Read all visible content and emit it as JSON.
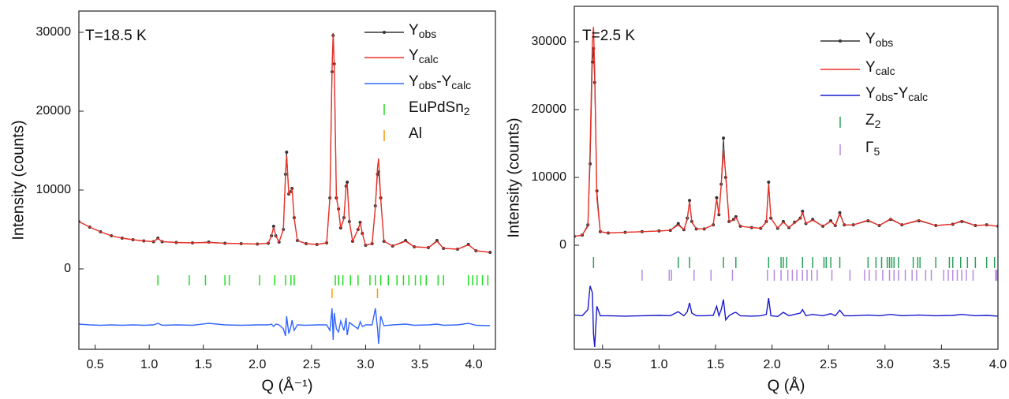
{
  "chart_data": [
    {
      "type": "line",
      "annotation": "T=18.5 K",
      "xlabel": "Q (Å⁻¹)",
      "ylabel": "Intensity (counts)",
      "xlim": [
        0.35,
        4.2
      ],
      "xticks": [
        0.5,
        {
          "value": 1,
          "label": "1.0"
        },
        1.5,
        {
          "value": 2,
          "label": "2.0"
        },
        2.5,
        {
          "value": 3,
          "label": "3.0"
        },
        3.5,
        {
          "value": 4,
          "label": "4.0"
        }
      ],
      "ylim": [
        -10200,
        32700
      ],
      "yticks": [
        0,
        10000,
        20000,
        30000
      ],
      "x": [
        0.35,
        0.45,
        0.55,
        0.65,
        0.75,
        0.85,
        0.95,
        1.04,
        1.08,
        1.12,
        1.25,
        1.4,
        1.55,
        1.7,
        1.85,
        2.0,
        2.1,
        2.13,
        2.15,
        2.17,
        2.2,
        2.24,
        2.26,
        2.27,
        2.29,
        2.31,
        2.32,
        2.34,
        2.37,
        2.45,
        2.55,
        2.64,
        2.67,
        2.69,
        2.7,
        2.71,
        2.73,
        2.75,
        2.77,
        2.8,
        2.82,
        2.83,
        2.85,
        2.88,
        2.93,
        2.95,
        2.97,
        3.0,
        3.06,
        3.09,
        3.11,
        3.12,
        3.14,
        3.17,
        3.25,
        3.37,
        3.45,
        3.58,
        3.66,
        3.72,
        3.85,
        3.95,
        4.02,
        4.15
      ],
      "series": [
        {
          "name": "Yobs",
          "color": "#333333",
          "marker": true,
          "values": [
            6000,
            5300,
            4700,
            4200,
            3900,
            3700,
            3550,
            3450,
            3900,
            3450,
            3350,
            3300,
            3400,
            3250,
            3200,
            3150,
            3250,
            4200,
            5400,
            4200,
            3400,
            5000,
            12000,
            14800,
            9500,
            9800,
            10200,
            6500,
            3600,
            3200,
            3100,
            3300,
            9000,
            25000,
            29600,
            26000,
            9000,
            7600,
            5200,
            6500,
            10500,
            11000,
            6000,
            3500,
            5000,
            5900,
            4500,
            3000,
            3200,
            8000,
            12000,
            12300,
            9000,
            3500,
            2900,
            3600,
            2800,
            2700,
            3600,
            2600,
            2500,
            3100,
            2300,
            2100
          ]
        },
        {
          "name": "Ycalc",
          "color": "#e8322a",
          "marker": false,
          "values": [
            6000,
            5300,
            4700,
            4200,
            3900,
            3700,
            3550,
            3450,
            3850,
            3450,
            3350,
            3300,
            3350,
            3250,
            3200,
            3150,
            3250,
            4200,
            5300,
            4200,
            3400,
            5000,
            11800,
            14300,
            9500,
            9700,
            10200,
            6400,
            3600,
            3200,
            3100,
            3300,
            9100,
            25500,
            29900,
            25800,
            9100,
            7500,
            5200,
            6400,
            10500,
            10800,
            6000,
            3500,
            5000,
            5800,
            4500,
            3000,
            3200,
            7800,
            12800,
            14000,
            8800,
            3500,
            2900,
            3500,
            2800,
            2700,
            3500,
            2600,
            2500,
            3050,
            2300,
            2100
          ]
        },
        {
          "name": "Yobs-Ycalc",
          "color": "#3366ff",
          "marker": false,
          "values": [
            -7000,
            -7100,
            -7150,
            -7100,
            -7150,
            -7100,
            -7150,
            -7100,
            -6900,
            -7150,
            -7100,
            -7150,
            -6900,
            -7100,
            -7150,
            -7100,
            -7100,
            -7000,
            -7300,
            -7000,
            -7100,
            -7600,
            -8500,
            -6000,
            -8200,
            -7300,
            -6500,
            -7800,
            -7100,
            -7150,
            -7100,
            -7100,
            -7800,
            -5000,
            -9000,
            -5600,
            -7600,
            -8000,
            -6600,
            -7800,
            -6200,
            -8400,
            -6800,
            -7100,
            -7600,
            -6700,
            -7300,
            -7100,
            -7100,
            -5000,
            -7500,
            -9500,
            -6000,
            -7200,
            -7100,
            -7000,
            -7150,
            -7100,
            -7000,
            -7150,
            -7100,
            -6900,
            -7150,
            -7200
          ]
        }
      ],
      "reflections": [
        {
          "name": "EuPdSn2",
          "color": "#22dd22",
          "positions": [
            1.08,
            1.37,
            1.52,
            1.7,
            1.74,
            2.02,
            2.16,
            2.26,
            2.31,
            2.34,
            2.72,
            2.75,
            2.79,
            2.86,
            2.93,
            3.04,
            3.09,
            3.14,
            3.21,
            3.29,
            3.35,
            3.4,
            3.46,
            3.51,
            3.56,
            3.67,
            3.72,
            3.95,
            3.99,
            4.03,
            4.08,
            4.13
          ]
        },
        {
          "name": "Al",
          "color": "#ff9900",
          "positions": [
            2.69,
            3.11
          ]
        }
      ]
    },
    {
      "type": "line",
      "annotation": "T=2.5 K",
      "xlabel": "Q (Å)",
      "ylabel": "Intensity (counts)",
      "xlim": [
        0.25,
        4.0
      ],
      "xticks": [
        0.5,
        {
          "value": 1,
          "label": "1.0"
        },
        1.5,
        {
          "value": 2,
          "label": "2.0"
        },
        2.5,
        {
          "value": 3,
          "label": "3.0"
        },
        3.5,
        {
          "value": 4,
          "label": "4.0"
        }
      ],
      "ylim": [
        -15350,
        35230
      ],
      "yticks": [
        0,
        10000,
        20000,
        30000
      ],
      "x": [
        0.25,
        0.32,
        0.37,
        0.39,
        0.41,
        0.42,
        0.43,
        0.45,
        0.48,
        0.55,
        0.7,
        0.85,
        1.0,
        1.1,
        1.17,
        1.22,
        1.25,
        1.27,
        1.29,
        1.33,
        1.4,
        1.48,
        1.51,
        1.53,
        1.55,
        1.57,
        1.59,
        1.62,
        1.66,
        1.68,
        1.72,
        1.82,
        1.9,
        1.95,
        1.97,
        1.99,
        2.05,
        2.1,
        2.15,
        2.2,
        2.25,
        2.27,
        2.3,
        2.36,
        2.45,
        2.52,
        2.56,
        2.6,
        2.64,
        2.72,
        2.85,
        2.95,
        3.05,
        3.15,
        3.3,
        3.45,
        3.6,
        3.68,
        3.8,
        3.9,
        4.0
      ],
      "series": [
        {
          "name": "Yobs",
          "color": "#333333",
          "marker": true,
          "values": [
            1300,
            1500,
            3000,
            12000,
            27000,
            29000,
            24000,
            8000,
            2000,
            1800,
            1900,
            2000,
            2100,
            2200,
            3200,
            2300,
            4000,
            6600,
            3500,
            2400,
            2400,
            3000,
            7000,
            4500,
            9000,
            15800,
            10000,
            3500,
            3800,
            4200,
            2800,
            2600,
            2500,
            3500,
            9300,
            4000,
            2500,
            3500,
            2600,
            3400,
            4000,
            5000,
            3200,
            3800,
            2800,
            3600,
            2900,
            4800,
            3000,
            3000,
            3600,
            2900,
            3800,
            3000,
            3600,
            2900,
            3100,
            3500,
            2900,
            3000,
            2800
          ]
        },
        {
          "name": "Ycalc",
          "color": "#e8322a",
          "marker": false,
          "values": [
            1300,
            1500,
            2800,
            14000,
            30000,
            32200,
            26000,
            7000,
            2000,
            1800,
            1900,
            2000,
            2100,
            2200,
            3000,
            2300,
            3800,
            6500,
            3400,
            2400,
            2400,
            3000,
            6800,
            4500,
            8800,
            14000,
            10500,
            3500,
            3700,
            4100,
            2800,
            2600,
            2500,
            3400,
            9000,
            4000,
            2500,
            3400,
            2600,
            3300,
            3900,
            4800,
            3200,
            3700,
            2800,
            3500,
            2900,
            4600,
            3000,
            3000,
            3700,
            2900,
            3900,
            3000,
            3700,
            2900,
            3100,
            3600,
            2900,
            3000,
            2800
          ]
        },
        {
          "name": "Yobs-Ycalc",
          "color": "#1a1acc",
          "marker": false,
          "values": [
            -10300,
            -10400,
            -9500,
            -6000,
            -7000,
            -13000,
            -15000,
            -9000,
            -10400,
            -10400,
            -10450,
            -10400,
            -10350,
            -10400,
            -9800,
            -10400,
            -9800,
            -8500,
            -10000,
            -10400,
            -10400,
            -10350,
            -9000,
            -10400,
            -9500,
            -8000,
            -11000,
            -10400,
            -10000,
            -9900,
            -10400,
            -10450,
            -10400,
            -10200,
            -7800,
            -10400,
            -10500,
            -9900,
            -10400,
            -10200,
            -10000,
            -9500,
            -10400,
            -10200,
            -10400,
            -10100,
            -10400,
            -9600,
            -10400,
            -10400,
            -10300,
            -10400,
            -10200,
            -10400,
            -10300,
            -10400,
            -10350,
            -10200,
            -10400,
            -10350,
            -10450
          ]
        }
      ],
      "reflections": [
        {
          "name": "Z2",
          "color": "#2aa05a",
          "positions": [
            0.42,
            1.17,
            1.27,
            1.57,
            1.68,
            1.97,
            2.08,
            2.1,
            2.13,
            2.27,
            2.36,
            2.46,
            2.48,
            2.52,
            2.6,
            2.85,
            2.92,
            2.97,
            3.02,
            3.04,
            3.06,
            3.08,
            3.12,
            3.25,
            3.29,
            3.31,
            3.45,
            3.57,
            3.6,
            3.67,
            3.73,
            3.8,
            3.9,
            3.97
          ]
        },
        {
          "name": "Γ5",
          "color": "#b68ae0",
          "positions": [
            0.85,
            1.09,
            1.11,
            1.31,
            1.46,
            1.65,
            1.96,
            2.02,
            2.08,
            2.14,
            2.18,
            2.22,
            2.27,
            2.31,
            2.35,
            2.4,
            2.53,
            2.69,
            2.82,
            2.86,
            2.92,
            2.98,
            3.04,
            3.08,
            3.12,
            3.18,
            3.24,
            3.28,
            3.36,
            3.41,
            3.52,
            3.56,
            3.6,
            3.64,
            3.68,
            3.72,
            3.78,
            3.98,
            3.99
          ]
        }
      ]
    }
  ]
}
